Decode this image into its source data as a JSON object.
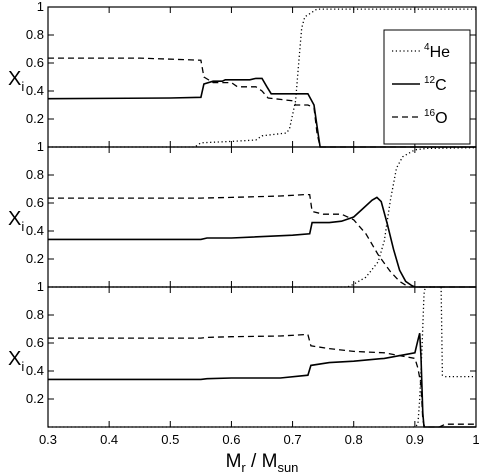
{
  "chart_data": {
    "type": "line",
    "layout": "three vertically stacked panels sharing x axis",
    "xlim": [
      0.3,
      1.0
    ],
    "ylim": [
      0,
      1
    ],
    "x_ticks": [
      "0.3",
      "0.4",
      "0.5",
      "0.6",
      "0.7",
      "0.8",
      "0.9",
      "1"
    ],
    "y_ticks": [
      "0.2",
      "0.4",
      "0.6",
      "0.8",
      "1"
    ],
    "xlabel": {
      "main": "M",
      "sub1": "r",
      "sep": " / M",
      "sub2": "sun"
    },
    "ylabel": {
      "main": "X",
      "sub": "i"
    },
    "legend": {
      "placement": "top-right of top panel",
      "entries": [
        {
          "sup": "4",
          "name": "He",
          "style": "dotted"
        },
        {
          "sup": "12",
          "name": "C",
          "style": "solid"
        },
        {
          "sup": "16",
          "name": "O",
          "style": "dashed"
        }
      ]
    },
    "panels": [
      {
        "series": [
          {
            "name": "He",
            "style": "dotted",
            "points": [
              [
                0.3,
                0.0
              ],
              [
                0.54,
                0.0
              ],
              [
                0.55,
                0.03
              ],
              [
                0.6,
                0.04
              ],
              [
                0.64,
                0.05
              ],
              [
                0.65,
                0.08
              ],
              [
                0.69,
                0.1
              ],
              [
                0.695,
                0.13
              ],
              [
                0.705,
                0.33
              ],
              [
                0.71,
                0.6
              ],
              [
                0.715,
                0.85
              ],
              [
                0.72,
                0.93
              ],
              [
                0.74,
                0.985
              ],
              [
                0.745,
                0.985
              ],
              [
                1.0,
                0.985
              ]
            ]
          },
          {
            "name": "C",
            "style": "solid",
            "points": [
              [
                0.3,
                0.345
              ],
              [
                0.5,
                0.35
              ],
              [
                0.55,
                0.355
              ],
              [
                0.555,
                0.45
              ],
              [
                0.57,
                0.47
              ],
              [
                0.585,
                0.47
              ],
              [
                0.59,
                0.48
              ],
              [
                0.63,
                0.48
              ],
              [
                0.64,
                0.49
              ],
              [
                0.65,
                0.49
              ],
              [
                0.658,
                0.43
              ],
              [
                0.665,
                0.38
              ],
              [
                0.72,
                0.38
              ],
              [
                0.725,
                0.38
              ],
              [
                0.735,
                0.3
              ],
              [
                0.74,
                0.15
              ],
              [
                0.745,
                0.0
              ],
              [
                1.0,
                0.0
              ]
            ]
          },
          {
            "name": "O",
            "style": "dashed",
            "points": [
              [
                0.3,
                0.635
              ],
              [
                0.45,
                0.635
              ],
              [
                0.55,
                0.62
              ],
              [
                0.555,
                0.5
              ],
              [
                0.57,
                0.46
              ],
              [
                0.6,
                0.46
              ],
              [
                0.61,
                0.43
              ],
              [
                0.64,
                0.43
              ],
              [
                0.65,
                0.4
              ],
              [
                0.66,
                0.35
              ],
              [
                0.7,
                0.33
              ],
              [
                0.705,
                0.3
              ],
              [
                0.725,
                0.3
              ],
              [
                0.735,
                0.28
              ],
              [
                0.74,
                0.1
              ],
              [
                0.745,
                0.0
              ],
              [
                1.0,
                0.0
              ]
            ]
          }
        ]
      },
      {
        "series": [
          {
            "name": "He",
            "style": "dotted",
            "points": [
              [
                0.3,
                0.0
              ],
              [
                0.79,
                0.0
              ],
              [
                0.8,
                0.02
              ],
              [
                0.82,
                0.07
              ],
              [
                0.84,
                0.18
              ],
              [
                0.85,
                0.33
              ],
              [
                0.86,
                0.62
              ],
              [
                0.87,
                0.85
              ],
              [
                0.88,
                0.93
              ],
              [
                0.9,
                0.98
              ],
              [
                0.92,
                0.99
              ],
              [
                1.0,
                0.995
              ]
            ]
          },
          {
            "name": "C",
            "style": "solid",
            "points": [
              [
                0.3,
                0.34
              ],
              [
                0.4,
                0.34
              ],
              [
                0.55,
                0.34
              ],
              [
                0.56,
                0.35
              ],
              [
                0.6,
                0.35
              ],
              [
                0.7,
                0.37
              ],
              [
                0.728,
                0.38
              ],
              [
                0.732,
                0.46
              ],
              [
                0.76,
                0.46
              ],
              [
                0.78,
                0.47
              ],
              [
                0.8,
                0.5
              ],
              [
                0.815,
                0.56
              ],
              [
                0.83,
                0.62
              ],
              [
                0.838,
                0.64
              ],
              [
                0.845,
                0.61
              ],
              [
                0.855,
                0.45
              ],
              [
                0.865,
                0.27
              ],
              [
                0.875,
                0.12
              ],
              [
                0.885,
                0.04
              ],
              [
                0.895,
                0.01
              ],
              [
                0.9,
                0.0
              ],
              [
                1.0,
                0.0
              ]
            ]
          },
          {
            "name": "O",
            "style": "dashed",
            "points": [
              [
                0.3,
                0.635
              ],
              [
                0.4,
                0.635
              ],
              [
                0.55,
                0.635
              ],
              [
                0.6,
                0.64
              ],
              [
                0.68,
                0.65
              ],
              [
                0.72,
                0.66
              ],
              [
                0.728,
                0.66
              ],
              [
                0.732,
                0.54
              ],
              [
                0.75,
                0.52
              ],
              [
                0.78,
                0.52
              ],
              [
                0.8,
                0.48
              ],
              [
                0.82,
                0.38
              ],
              [
                0.84,
                0.23
              ],
              [
                0.86,
                0.11
              ],
              [
                0.875,
                0.04
              ],
              [
                0.89,
                0.0
              ],
              [
                1.0,
                0.0
              ]
            ]
          }
        ]
      },
      {
        "series": [
          {
            "name": "He",
            "style": "dotted",
            "points": [
              [
                0.3,
                0.0
              ],
              [
                0.9,
                0.0
              ],
              [
                0.905,
                0.02
              ],
              [
                0.908,
                0.2
              ],
              [
                0.912,
                0.6
              ],
              [
                0.915,
                0.95
              ],
              [
                0.917,
                1.0
              ],
              [
                0.943,
                1.0
              ],
              [
                0.945,
                0.37
              ],
              [
                0.95,
                0.36
              ],
              [
                1.0,
                0.36
              ]
            ]
          },
          {
            "name": "C",
            "style": "solid",
            "points": [
              [
                0.3,
                0.34
              ],
              [
                0.4,
                0.34
              ],
              [
                0.55,
                0.34
              ],
              [
                0.56,
                0.345
              ],
              [
                0.6,
                0.35
              ],
              [
                0.68,
                0.35
              ],
              [
                0.725,
                0.37
              ],
              [
                0.73,
                0.44
              ],
              [
                0.76,
                0.46
              ],
              [
                0.8,
                0.47
              ],
              [
                0.85,
                0.49
              ],
              [
                0.9,
                0.53
              ],
              [
                0.905,
                0.62
              ],
              [
                0.908,
                0.67
              ],
              [
                0.91,
                0.5
              ],
              [
                0.913,
                0.1
              ],
              [
                0.915,
                0.0
              ],
              [
                1.0,
                0.0
              ]
            ]
          },
          {
            "name": "O",
            "style": "dashed",
            "points": [
              [
                0.3,
                0.635
              ],
              [
                0.4,
                0.635
              ],
              [
                0.55,
                0.635
              ],
              [
                0.56,
                0.64
              ],
              [
                0.6,
                0.645
              ],
              [
                0.68,
                0.65
              ],
              [
                0.72,
                0.66
              ],
              [
                0.725,
                0.66
              ],
              [
                0.73,
                0.58
              ],
              [
                0.76,
                0.56
              ],
              [
                0.8,
                0.54
              ],
              [
                0.85,
                0.53
              ],
              [
                0.9,
                0.49
              ],
              [
                0.905,
                0.42
              ],
              [
                0.91,
                0.3
              ],
              [
                0.913,
                0.05
              ],
              [
                0.916,
                0.0
              ],
              [
                0.94,
                0.0
              ],
              [
                0.95,
                0.02
              ],
              [
                1.0,
                0.02
              ]
            ]
          }
        ]
      }
    ]
  }
}
